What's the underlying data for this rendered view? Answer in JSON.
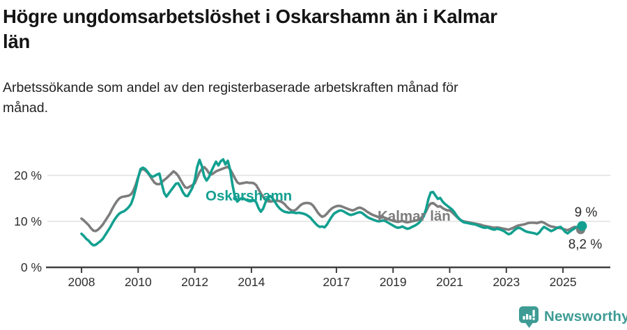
{
  "header": {
    "title_lines": [
      "Högre ungdomsarbetslöshet i Oskarshamn än i Kalmar",
      "län"
    ],
    "subtitle_lines": [
      "Arbetssökande som andel av den registerbaserade arbetskraften månad för",
      "månad."
    ]
  },
  "chart_data": {
    "type": "line",
    "title": "Högre ungdomsarbetslöshet i Oskarshamn än i Kalmar län",
    "subtitle": "Arbetssökande som andel av den registerbaserade arbetskraften månad för månad.",
    "x_unit": "month",
    "x_start": "2008-01",
    "x_end": "2025-09",
    "x_tick_labels": [
      "2008",
      "2010",
      "2012",
      "2014",
      "2017",
      "2019",
      "2021",
      "2023",
      "2025"
    ],
    "y_tick_labels": [
      "0 %",
      "10 %",
      "20 %"
    ],
    "ylim": [
      0,
      24
    ],
    "grid": "horizontal",
    "legend": "inline-labels",
    "series": [
      {
        "id": "oskarshamn",
        "name": "Oskarshamn",
        "color": "#12a090",
        "end_label": "9 %",
        "values": [
          7.3,
          6.8,
          6.2,
          5.8,
          5.2,
          4.8,
          4.9,
          5.3,
          5.7,
          6.2,
          7.0,
          7.8,
          8.6,
          9.5,
          10.4,
          11.1,
          11.7,
          12.0,
          12.2,
          12.6,
          13.1,
          13.8,
          15.2,
          17.2,
          19.5,
          21.4,
          21.7,
          21.4,
          20.8,
          20.1,
          19.7,
          19.9,
          20.2,
          20.4,
          18.2,
          16.2,
          15.4,
          16.1,
          16.8,
          17.5,
          18.2,
          18.3,
          17.4,
          16.3,
          15.6,
          15.5,
          16.4,
          17.3,
          19.0,
          21.8,
          23.4,
          22.0,
          19.8,
          18.9,
          19.6,
          20.9,
          22.0,
          23.0,
          22.2,
          23.1,
          23.5,
          22.4,
          23.2,
          21.2,
          17.9,
          15.4,
          14.3,
          14.8,
          15.1,
          14.9,
          14.6,
          14.4,
          14.4,
          14.6,
          14.2,
          12.9,
          12.1,
          12.8,
          14.2,
          15.3,
          15.5,
          15.0,
          14.2,
          13.4,
          12.8,
          12.4,
          12.1,
          12.0,
          11.9,
          12.0,
          11.9,
          11.8,
          11.9,
          11.8,
          11.7,
          11.5,
          11.2,
          10.8,
          10.2,
          9.6,
          9.1,
          8.8,
          8.9,
          8.7,
          9.3,
          10.2,
          11.0,
          11.7,
          12.0,
          12.3,
          12.4,
          12.2,
          11.9,
          11.6,
          11.4,
          11.5,
          11.7,
          11.9,
          12.0,
          11.8,
          11.4,
          11.0,
          10.7,
          10.5,
          10.3,
          10.1,
          10.0,
          10.1,
          10.2,
          10.0,
          9.7,
          9.4,
          9.1,
          8.8,
          8.6,
          8.7,
          8.9,
          8.6,
          8.4,
          8.5,
          8.8,
          9.0,
          9.3,
          9.7,
          10.3,
          11.1,
          12.7,
          14.9,
          16.3,
          16.4,
          15.6,
          14.9,
          15.1,
          14.3,
          13.8,
          13.4,
          13.0,
          12.6,
          12.0,
          11.2,
          10.6,
          10.1,
          9.8,
          9.7,
          9.6,
          9.5,
          9.4,
          9.3,
          9.1,
          8.9,
          8.7,
          8.6,
          8.7,
          8.5,
          8.3,
          8.2,
          8.4,
          8.3,
          8.1,
          7.9,
          7.5,
          7.2,
          7.4,
          7.9,
          8.3,
          8.6,
          8.5,
          8.2,
          7.9,
          7.7,
          7.6,
          7.5,
          7.4,
          7.2,
          7.6,
          8.3,
          8.8,
          8.5,
          8.2,
          7.9,
          8.1,
          8.4,
          8.7,
          8.8,
          8.3,
          7.7,
          7.4,
          7.8,
          8.2,
          8.5,
          8.8,
          9.0,
          9.0
        ]
      },
      {
        "id": "kalmar",
        "name": "Kalmar län",
        "color": "#7d7d7d",
        "end_label": "8,2 %",
        "values": [
          10.6,
          10.2,
          9.7,
          9.2,
          8.5,
          8.0,
          7.9,
          8.2,
          8.7,
          9.3,
          10.1,
          10.9,
          11.7,
          12.7,
          13.6,
          14.4,
          15.0,
          15.3,
          15.4,
          15.5,
          15.6,
          15.9,
          16.7,
          18.0,
          19.6,
          21.1,
          21.4,
          21.1,
          20.6,
          19.9,
          19.1,
          18.4,
          18.1,
          18.1,
          18.5,
          19.0,
          19.4,
          19.9,
          20.4,
          20.9,
          20.5,
          19.9,
          19.0,
          18.1,
          17.4,
          17.3,
          17.6,
          17.9,
          18.3,
          19.5,
          20.7,
          21.4,
          21.8,
          21.3,
          20.5,
          20.2,
          20.5,
          20.9,
          21.1,
          21.3,
          21.5,
          21.7,
          21.9,
          21.3,
          20.4,
          19.4,
          18.5,
          18.2,
          18.3,
          18.4,
          18.5,
          18.4,
          18.4,
          18.3,
          17.9,
          17.0,
          16.1,
          15.3,
          14.7,
          14.4,
          14.3,
          14.4,
          14.5,
          14.5,
          14.4,
          14.2,
          13.8,
          13.2,
          12.7,
          12.4,
          12.3,
          12.6,
          13.1,
          13.6,
          13.9,
          14.0,
          14.0,
          13.9,
          13.5,
          12.8,
          12.0,
          11.4,
          11.0,
          11.2,
          11.7,
          12.3,
          12.8,
          13.1,
          13.3,
          13.4,
          13.3,
          13.1,
          12.9,
          12.7,
          12.5,
          12.4,
          12.6,
          12.9,
          13.0,
          12.8,
          12.5,
          12.1,
          11.8,
          11.5,
          11.3,
          11.1,
          10.9,
          10.8,
          10.9,
          10.7,
          10.5,
          10.3,
          10.1,
          10.0,
          9.9,
          10.0,
          10.1,
          9.9,
          9.8,
          9.9,
          10.0,
          10.1,
          10.2,
          10.4,
          10.8,
          11.3,
          12.2,
          13.3,
          13.9,
          14.0,
          13.6,
          13.2,
          13.3,
          12.9,
          12.6,
          12.4,
          12.4,
          12.0,
          11.5,
          11.0,
          10.5,
          10.2,
          10.0,
          9.9,
          9.8,
          9.7,
          9.6,
          9.5,
          9.4,
          9.3,
          9.1,
          9.0,
          8.9,
          8.8,
          8.7,
          8.6,
          8.7,
          8.6,
          8.5,
          8.4,
          8.3,
          8.2,
          8.4,
          8.6,
          8.9,
          9.1,
          9.2,
          9.3,
          9.4,
          9.6,
          9.7,
          9.7,
          9.7,
          9.6,
          9.8,
          9.9,
          9.7,
          9.4,
          9.1,
          8.9,
          8.8,
          8.7,
          8.6,
          8.5,
          8.4,
          8.2,
          8.1,
          8.3,
          8.6,
          8.8,
          8.7,
          8.4,
          8.2
        ]
      }
    ]
  },
  "colors": {
    "accent_teal": "#12a090",
    "series_gray": "#7d7d7d",
    "gridline": "#d9d9d9",
    "axis": "#3f3f3f",
    "brand_teal": "#3e9c95"
  },
  "footer": {
    "brand": "Newsworthy"
  }
}
